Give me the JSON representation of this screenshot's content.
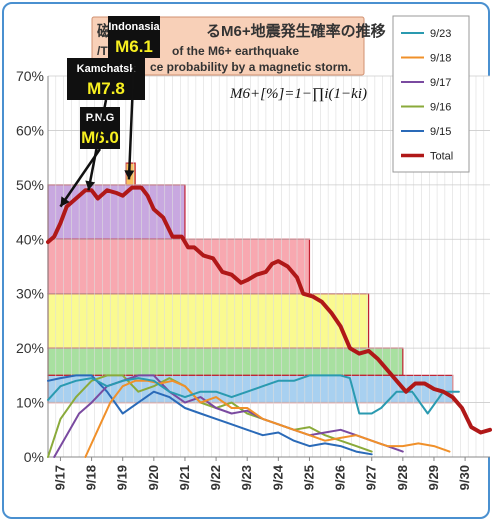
{
  "chart_data": {
    "type": "line",
    "title_jp_parts": [
      "磁",
      "るM6+地震発生確率の推移"
    ],
    "title_en_parts": [
      "/T",
      "of the M6+ earthquake",
      "ce probability by a magnetic storm."
    ],
    "formula": "M6+[%]=1−∏i(1−ki)",
    "ylim": [
      0,
      70
    ],
    "y_ticks": [
      {
        "v": 0,
        "label": "0%"
      },
      {
        "v": 10,
        "label": "10%"
      },
      {
        "v": 20,
        "label": "20%"
      },
      {
        "v": 30,
        "label": "30%"
      },
      {
        "v": 40,
        "label": "40%"
      },
      {
        "v": 50,
        "label": "50%"
      },
      {
        "v": 60,
        "label": "60%"
      },
      {
        "v": 70,
        "label": "70%"
      }
    ],
    "x_range": [
      16.6,
      30.8
    ],
    "x_ticks": [
      {
        "v": 17,
        "label": "9/17"
      },
      {
        "v": 18,
        "label": "9/18"
      },
      {
        "v": 19,
        "label": "9/19"
      },
      {
        "v": 20,
        "label": "9/20"
      },
      {
        "v": 21,
        "label": "9/21"
      },
      {
        "v": 22,
        "label": "9/22"
      },
      {
        "v": 23,
        "label": "9/23"
      },
      {
        "v": 24,
        "label": "9/24"
      },
      {
        "v": 25,
        "label": "9/25"
      },
      {
        "v": 26,
        "label": "9/26"
      },
      {
        "v": 27,
        "label": "9/27"
      },
      {
        "v": 28,
        "label": "9/28"
      },
      {
        "v": 29,
        "label": "9/29"
      },
      {
        "v": 30,
        "label": "9/30"
      }
    ],
    "bands": [
      {
        "x0": 16.6,
        "x1": 21.0,
        "y0": 40,
        "y1": 50,
        "color": "#c8a8e0"
      },
      {
        "x0": 16.6,
        "x1": 25.0,
        "y0": 30,
        "y1": 40,
        "color": "#f8a8b0"
      },
      {
        "x0": 16.6,
        "x1": 26.9,
        "y0": 20,
        "y1": 30,
        "color": "#fafa90"
      },
      {
        "x0": 16.6,
        "x1": 28.0,
        "y0": 15,
        "y1": 20,
        "color": "#a8e0a0"
      },
      {
        "x0": 16.6,
        "x1": 29.6,
        "y0": 10,
        "y1": 15,
        "color": "#a8d0f0"
      },
      {
        "x0": 19.1,
        "x1": 19.4,
        "y0": 50,
        "y1": 54,
        "color": "#f8c060"
      }
    ],
    "legend": [
      {
        "label": "9/23",
        "color": "#2a9ab0"
      },
      {
        "label": "9/18",
        "color": "#f0902a"
      },
      {
        "label": "9/17",
        "color": "#7a4aa0"
      },
      {
        "label": "9/16",
        "color": "#8aaa3a"
      },
      {
        "label": "9/15",
        "color": "#2a6ab8"
      },
      {
        "label": "Total",
        "color": "#b01818"
      }
    ],
    "series": [
      {
        "name": "Total",
        "color": "#b01818",
        "width": 4,
        "x": [
          16.6,
          16.8,
          17.0,
          17.2,
          17.5,
          17.8,
          18.0,
          18.2,
          18.5,
          18.8,
          19.0,
          19.3,
          19.6,
          19.8,
          20.0,
          20.3,
          20.6,
          20.9,
          21.1,
          21.3,
          21.6,
          21.9,
          22.2,
          22.5,
          22.8,
          23.0,
          23.3,
          23.6,
          23.8,
          24.0,
          24.3,
          24.6,
          24.8,
          25.1,
          25.4,
          25.7,
          26.0,
          26.3,
          26.6,
          26.9,
          27.2,
          27.5,
          27.8,
          28.1,
          28.4,
          28.7,
          29.0,
          29.3,
          29.6,
          29.9,
          30.2,
          30.5,
          30.8
        ],
        "y": [
          39.5,
          40.5,
          43,
          46,
          47.5,
          49,
          49,
          47.5,
          49,
          48.5,
          48,
          49.5,
          49.5,
          48,
          45.5,
          44,
          40.5,
          40.5,
          38.5,
          38.5,
          37,
          36.5,
          34,
          33.5,
          32,
          32.5,
          33.5,
          34,
          35.5,
          36,
          35,
          33,
          30,
          29.5,
          28.5,
          26.5,
          24,
          20,
          19,
          19.5,
          18,
          16,
          14,
          12,
          13.5,
          13.5,
          12.5,
          12,
          11,
          9,
          5.5,
          4.5,
          5
        ]
      },
      {
        "name": "9/23",
        "color": "#2a9ab0",
        "width": 2,
        "x": [
          16.6,
          17.0,
          17.5,
          18.0,
          18.5,
          19.0,
          19.5,
          20.0,
          20.5,
          21.0,
          21.5,
          22.0,
          22.5,
          23.0,
          23.5,
          24.0,
          24.5,
          25.0,
          25.5,
          26.0,
          26.3,
          26.6,
          27.0,
          27.3,
          27.8,
          28.3,
          28.8,
          29.3,
          29.8
        ],
        "y": [
          10.5,
          13,
          14,
          14.5,
          13,
          14,
          14.5,
          14,
          12,
          11,
          12,
          12,
          11,
          12,
          13,
          14,
          14,
          15,
          15,
          15,
          14.5,
          8,
          8,
          9,
          12,
          12,
          8,
          12,
          12
        ]
      },
      {
        "name": "9/18",
        "color": "#f0902a",
        "width": 2,
        "x": [
          17.8,
          18.2,
          18.6,
          19.0,
          19.4,
          19.8,
          20.2,
          20.6,
          21.0,
          21.5,
          22.0,
          22.5,
          23.0,
          23.5,
          24.0,
          24.5,
          25.0,
          25.5,
          26.0,
          26.5,
          27.0,
          27.5,
          28.0,
          28.5,
          29.0,
          29.5
        ],
        "y": [
          0,
          5,
          10,
          13,
          14,
          14,
          13.5,
          14,
          13,
          10,
          11,
          9,
          9,
          7,
          6,
          5,
          4,
          3,
          3.5,
          4,
          3,
          2,
          2,
          2.5,
          2,
          1
        ]
      },
      {
        "name": "9/17",
        "color": "#7a4aa0",
        "width": 2,
        "x": [
          16.8,
          17.2,
          17.6,
          18.0,
          18.5,
          19.0,
          19.5,
          20.0,
          20.5,
          21.0,
          21.5,
          22.0,
          22.5,
          23.0,
          23.5,
          24.0,
          24.5,
          25.0,
          25.5,
          26.0,
          26.5,
          27.0,
          27.5,
          28.0
        ],
        "y": [
          0,
          4,
          8,
          10,
          13,
          14,
          15,
          15,
          12,
          10,
          11,
          9,
          8,
          8.5,
          7,
          6,
          5,
          4,
          4.5,
          5,
          4,
          3,
          2,
          1
        ]
      },
      {
        "name": "9/16",
        "color": "#8aaa3a",
        "width": 2,
        "x": [
          16.6,
          17.0,
          17.5,
          18.0,
          18.5,
          19.0,
          19.5,
          20.0,
          20.5,
          21.0,
          21.5,
          22.0,
          22.5,
          23.0,
          23.5,
          24.0,
          24.5,
          25.0,
          25.5,
          26.0,
          26.5,
          27.0
        ],
        "y": [
          0,
          7,
          11,
          14,
          15,
          15,
          12,
          13,
          14.5,
          13,
          10,
          9,
          10,
          8,
          7,
          6,
          5,
          5.5,
          4,
          3,
          2,
          1
        ]
      },
      {
        "name": "9/15",
        "color": "#2a6ab8",
        "width": 2,
        "x": [
          16.6,
          17.0,
          17.5,
          18.0,
          18.5,
          19.0,
          19.5,
          20.0,
          20.5,
          21.0,
          21.5,
          22.0,
          22.5,
          23.0,
          23.5,
          24.0,
          24.5,
          25.0,
          25.5,
          26.0,
          26.5,
          27.0
        ],
        "y": [
          14,
          14.5,
          15,
          15,
          12,
          8,
          10,
          12,
          11,
          9,
          8,
          7,
          6,
          5,
          4,
          4.5,
          3,
          2,
          2.5,
          2,
          1,
          0.5
        ]
      }
    ],
    "annotations": [
      {
        "label": "P.N.G",
        "mag": "M6.0",
        "tx": 17.0,
        "ty": 46
      },
      {
        "label": "Kamchatsk",
        "mag": "M7.8",
        "tx": 17.9,
        "ty": 49
      },
      {
        "label": "Indonasia",
        "mag": "M6.1",
        "tx": 19.2,
        "ty": 51
      }
    ]
  }
}
